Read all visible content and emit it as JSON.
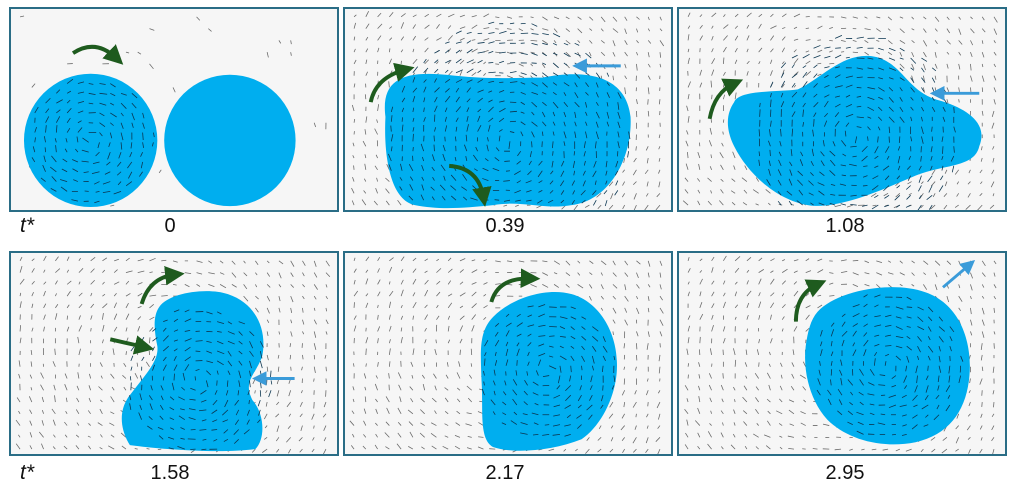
{
  "axis_symbol": "t*",
  "colors": {
    "droplet": "#00aeef",
    "rotation_arrow": "#1e5b1e",
    "motion_arrow": "#3a9bd9",
    "frame": "#2a6d86"
  },
  "panels": [
    {
      "time": "0",
      "rotation_arrows": 1,
      "motion_arrows": 0
    },
    {
      "time": "0.39",
      "rotation_arrows": 2,
      "motion_arrows": 1
    },
    {
      "time": "1.08",
      "rotation_arrows": 1,
      "motion_arrows": 1
    },
    {
      "time": "1.58",
      "rotation_arrows": 2,
      "motion_arrows": 1
    },
    {
      "time": "2.17",
      "rotation_arrows": 1,
      "motion_arrows": 0
    },
    {
      "time": "2.95",
      "rotation_arrows": 1,
      "motion_arrows": 1
    }
  ]
}
